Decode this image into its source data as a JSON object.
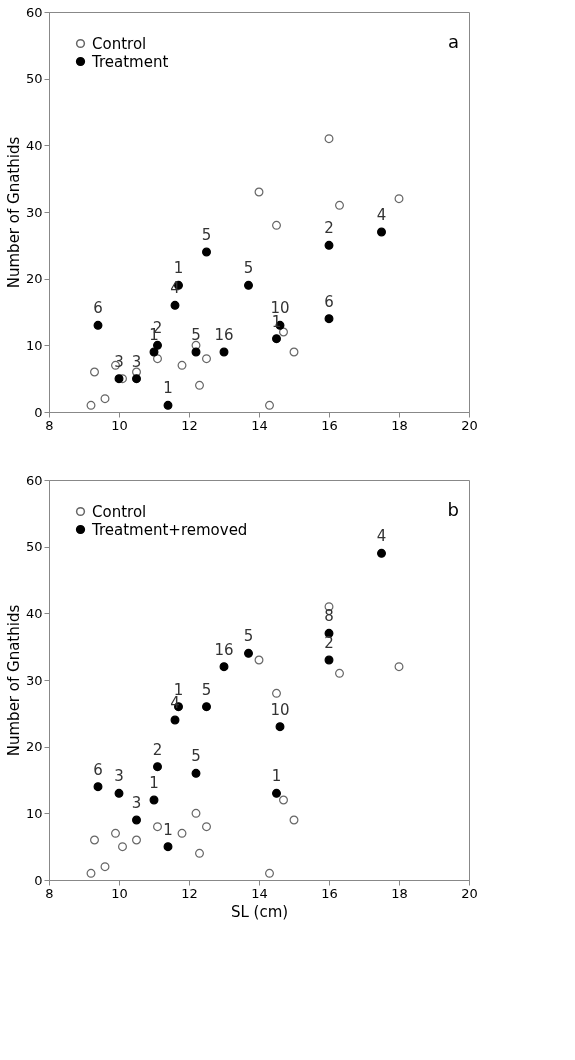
{
  "chart_data": [
    {
      "type": "scatter",
      "ylabel": "Number of Gnathids",
      "xlim": [
        8,
        20
      ],
      "xticks": [
        8,
        10,
        12,
        14,
        16,
        18,
        20
      ],
      "ylim": [
        0,
        60
      ],
      "yticks": [
        0,
        10,
        20,
        30,
        40,
        50,
        60
      ],
      "grid": false,
      "legend": "top left",
      "marker": "circle",
      "series": [
        {
          "name": "Control",
          "color": "#666666",
          "x": [
            9.2,
            9.3,
            9.6,
            9.9,
            10.1,
            10.5,
            11.1,
            11.8,
            12.2,
            12.3,
            12.5,
            14.0,
            14.3,
            14.5,
            14.7,
            15.0,
            16.0,
            16.3,
            18.0
          ],
          "values": [
            1,
            6,
            2,
            7,
            5,
            6,
            8,
            7,
            10,
            4,
            8,
            33,
            1,
            28,
            12,
            9,
            41,
            31,
            32
          ]
        },
        {
          "name": "Treatment",
          "color": "#000000",
          "x": [
            9.4,
            10.0,
            10.5,
            11.0,
            11.1,
            11.4,
            11.6,
            11.7,
            12.2,
            12.5,
            13.0,
            13.7,
            14.5,
            14.6,
            16.0,
            16.0,
            17.5
          ],
          "values": [
            13,
            5,
            5,
            9,
            10,
            1,
            16,
            19,
            9,
            24,
            9,
            19,
            11,
            13,
            25,
            14,
            27
          ]
        }
      ],
      "annotations": [
        "a",
        {
          "text": "6",
          "x": 9.4,
          "y": 13
        },
        {
          "text": "3",
          "x": 10.0,
          "y": 5
        },
        {
          "text": "3",
          "x": 10.5,
          "y": 5
        },
        {
          "text": "1",
          "x": 11.0,
          "y": 9
        },
        {
          "text": "2",
          "x": 11.1,
          "y": 10
        },
        {
          "text": "1",
          "x": 11.4,
          "y": 1
        },
        {
          "text": "4",
          "x": 11.6,
          "y": 16
        },
        {
          "text": "1",
          "x": 11.7,
          "y": 19
        },
        {
          "text": "5",
          "x": 12.2,
          "y": 9
        },
        {
          "text": "5",
          "x": 12.5,
          "y": 24
        },
        {
          "text": "16",
          "x": 13.0,
          "y": 9
        },
        {
          "text": "5",
          "x": 13.7,
          "y": 19
        },
        {
          "text": "1",
          "x": 14.5,
          "y": 11
        },
        {
          "text": "10",
          "x": 14.6,
          "y": 13
        },
        {
          "text": "2",
          "x": 16.0,
          "y": 25
        },
        {
          "text": "6",
          "x": 16.0,
          "y": 14
        },
        {
          "text": "4",
          "x": 17.5,
          "y": 27
        }
      ]
    },
    {
      "type": "scatter",
      "xlabel": "SL (cm)",
      "ylabel": "Number of Gnathids",
      "xlim": [
        8,
        20
      ],
      "xticks": [
        8,
        10,
        12,
        14,
        16,
        18,
        20
      ],
      "ylim": [
        0,
        60
      ],
      "yticks": [
        0,
        10,
        20,
        30,
        40,
        50,
        60
      ],
      "grid": false,
      "legend": "top left",
      "marker": "circle",
      "series": [
        {
          "name": "Control",
          "color": "#666666",
          "x": [
            9.2,
            9.3,
            9.6,
            9.9,
            10.1,
            10.5,
            11.1,
            11.8,
            12.2,
            12.3,
            12.5,
            14.0,
            14.3,
            14.5,
            14.7,
            15.0,
            16.0,
            16.3,
            18.0
          ],
          "values": [
            1,
            6,
            2,
            7,
            5,
            6,
            8,
            7,
            10,
            4,
            8,
            33,
            1,
            28,
            12,
            9,
            41,
            31,
            32
          ]
        },
        {
          "name": "Treatment+removed",
          "color": "#000000",
          "x": [
            9.4,
            10.0,
            10.5,
            11.0,
            11.1,
            11.4,
            11.6,
            11.7,
            12.2,
            12.5,
            13.0,
            13.7,
            14.5,
            14.6,
            16.0,
            16.0,
            17.5
          ],
          "values": [
            14,
            13,
            9,
            12,
            17,
            5,
            24,
            26,
            16,
            26,
            32,
            34,
            13,
            23,
            37,
            33,
            49
          ]
        }
      ],
      "annotations": [
        "b",
        {
          "text": "6",
          "x": 9.4,
          "y": 14
        },
        {
          "text": "3",
          "x": 10.0,
          "y": 13
        },
        {
          "text": "3",
          "x": 10.5,
          "y": 9
        },
        {
          "text": "1",
          "x": 11.0,
          "y": 12
        },
        {
          "text": "2",
          "x": 11.1,
          "y": 17
        },
        {
          "text": "1",
          "x": 11.4,
          "y": 5
        },
        {
          "text": "4",
          "x": 11.6,
          "y": 24
        },
        {
          "text": "1",
          "x": 11.7,
          "y": 26
        },
        {
          "text": "5",
          "x": 12.2,
          "y": 16
        },
        {
          "text": "5",
          "x": 12.5,
          "y": 26
        },
        {
          "text": "16",
          "x": 13.0,
          "y": 32
        },
        {
          "text": "5",
          "x": 13.7,
          "y": 34
        },
        {
          "text": "1",
          "x": 14.5,
          "y": 13
        },
        {
          "text": "10",
          "x": 14.6,
          "y": 23
        },
        {
          "text": "8",
          "x": 16.0,
          "y": 37
        },
        {
          "text": "2",
          "x": 16.0,
          "y": 33
        },
        {
          "text": "4",
          "x": 17.5,
          "y": 49
        }
      ]
    }
  ]
}
